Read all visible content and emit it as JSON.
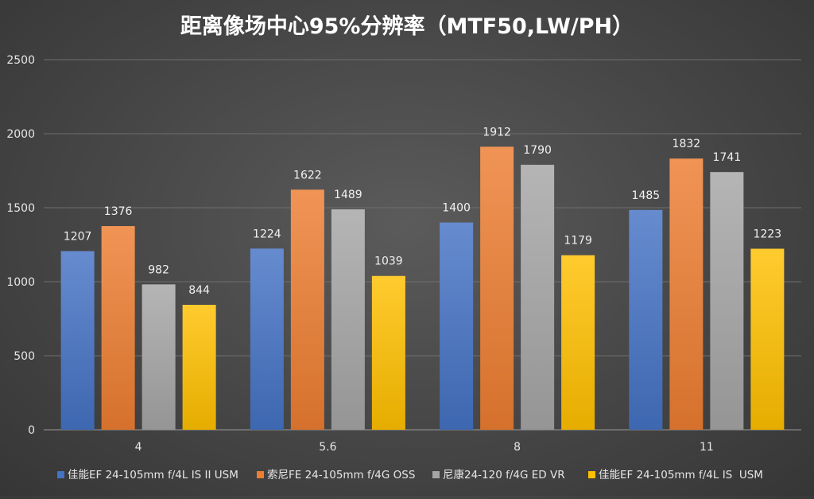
{
  "chart_data": {
    "type": "bar",
    "title": "距离像场中心95%分辨率（MTF50,LW/PH）",
    "xlabel": "",
    "ylabel": "",
    "ylim": [
      0,
      2500
    ],
    "yticks": [
      0,
      500,
      1000,
      1500,
      2000,
      2500
    ],
    "grid": true,
    "legend_position": "bottom",
    "categories": [
      "4",
      "5.6",
      "8",
      "11"
    ],
    "series": [
      {
        "name": "佳能EF 24-105mm f/4L IS II USM",
        "color": "#4472c4",
        "values": [
          1207,
          1224,
          1400,
          1485
        ]
      },
      {
        "name": "索尼FE 24-105mm f/4G OSS",
        "color": "#ed7d31",
        "values": [
          1376,
          1622,
          1912,
          1832
        ]
      },
      {
        "name": "尼康24-120 f/4G ED VR",
        "color": "#a5a5a5",
        "values": [
          982,
          1489,
          1790,
          1741
        ]
      },
      {
        "name": "佳能EF 24-105mm f/4L IS  USM",
        "color": "#ffc000",
        "values": [
          844,
          1039,
          1179,
          1223
        ]
      }
    ]
  }
}
